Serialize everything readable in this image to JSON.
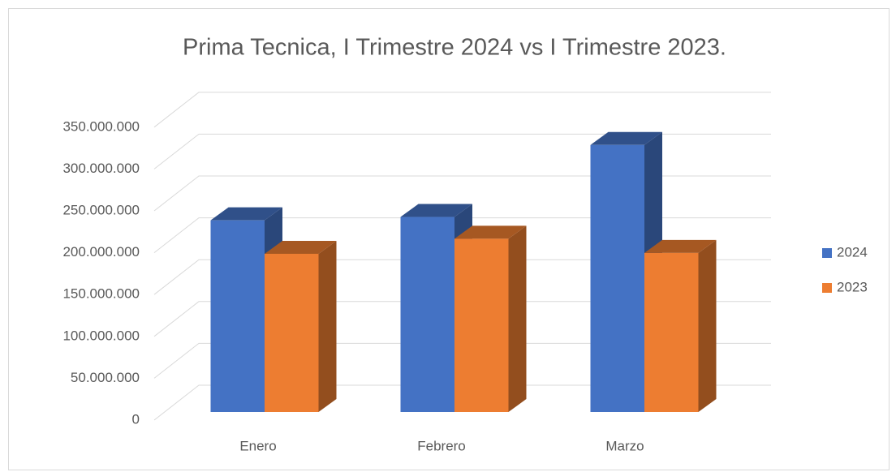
{
  "chart_data": {
    "type": "bar3d",
    "title": "Prima Tecnica, I Trimestre 2024 vs I Trimestre 2023.",
    "categories": [
      "Enero",
      "Febrero",
      "Marzo"
    ],
    "series": [
      {
        "name": "2024",
        "color": "#4472c4",
        "values": [
          229000000,
          233000000,
          319000000
        ]
      },
      {
        "name": "2023",
        "color": "#ed7d31",
        "values": [
          189000000,
          207000000,
          190000000
        ]
      }
    ],
    "ylim": [
      0,
      350000000
    ],
    "yticks": [
      0,
      {
        "value": 50000000,
        "label": "50.000.000"
      },
      {
        "value": 100000000,
        "label": "100.000.000"
      },
      {
        "value": 150000000,
        "label": "150.000.000"
      },
      {
        "value": 200000000,
        "label": "200.000.000"
      },
      {
        "value": 250000000,
        "label": "250.000.000"
      },
      {
        "value": 300000000,
        "label": "300.000.000"
      },
      {
        "value": 350000000,
        "label": "350.000.000"
      }
    ],
    "grid": true,
    "legend": "right"
  }
}
